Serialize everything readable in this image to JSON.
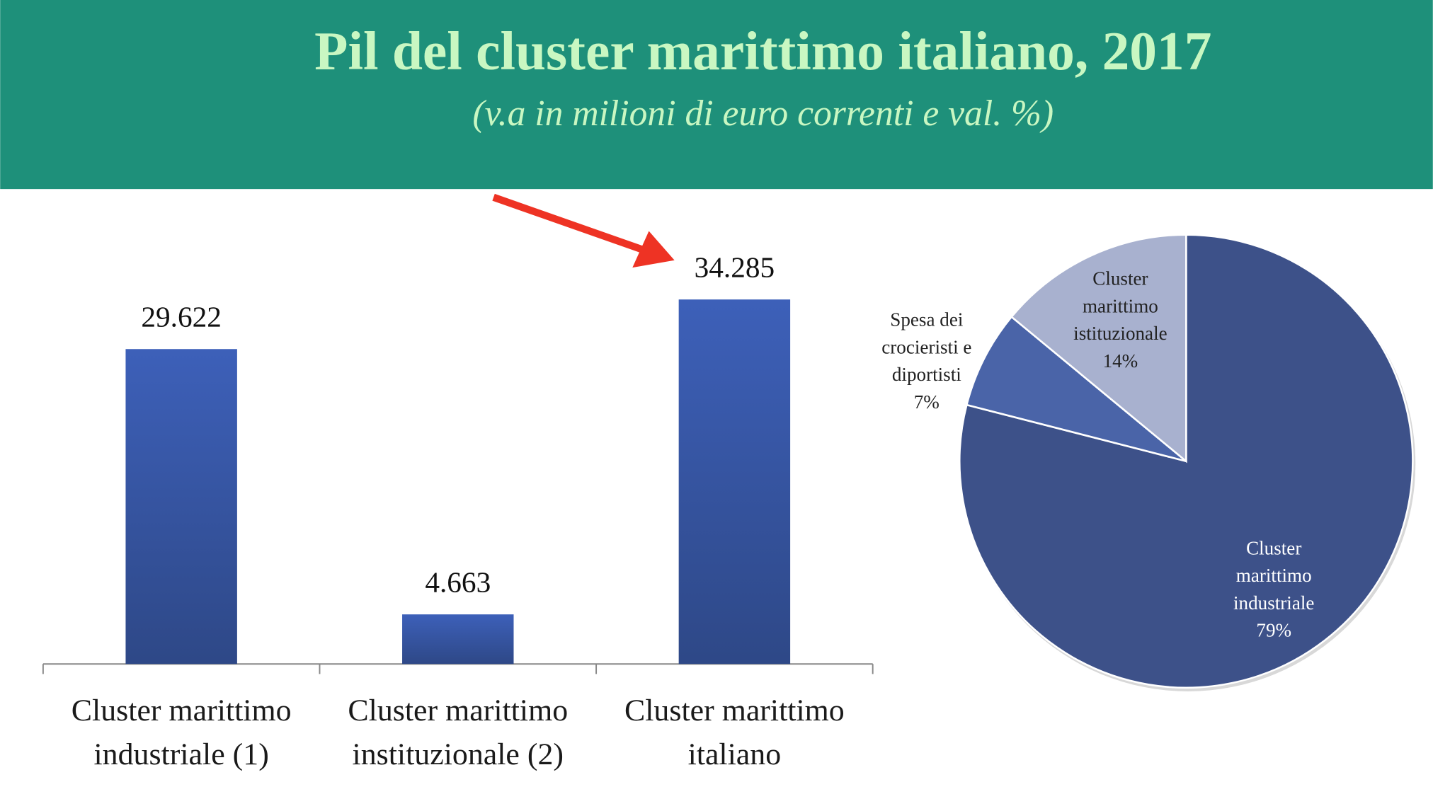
{
  "title": "Pil del cluster marittimo italiano, 2017",
  "subtitle": "(v.a in milioni di euro correnti e val. %)",
  "chart_data": [
    {
      "type": "bar",
      "categories": [
        "Cluster marittimo industriale (1)",
        "Cluster marittimo instituzionale (2)",
        "Cluster marittimo italiano"
      ],
      "values": [
        29622,
        4663,
        34285
      ],
      "value_labels": [
        "29.622",
        "4.663",
        "34.285"
      ],
      "color": "#3a5bb0",
      "ylim": [
        0,
        35000
      ]
    },
    {
      "type": "pie",
      "categories": [
        "Cluster marittimo industriale",
        "Spesa dei crocieristi e diportisti",
        "Cluster marittimo istituzionale"
      ],
      "values": [
        79,
        7,
        14
      ],
      "value_labels": [
        "79%",
        "7%",
        "14%"
      ],
      "colors": [
        "#3d5189",
        "#4a64a8",
        "#a8b1cf"
      ]
    }
  ]
}
